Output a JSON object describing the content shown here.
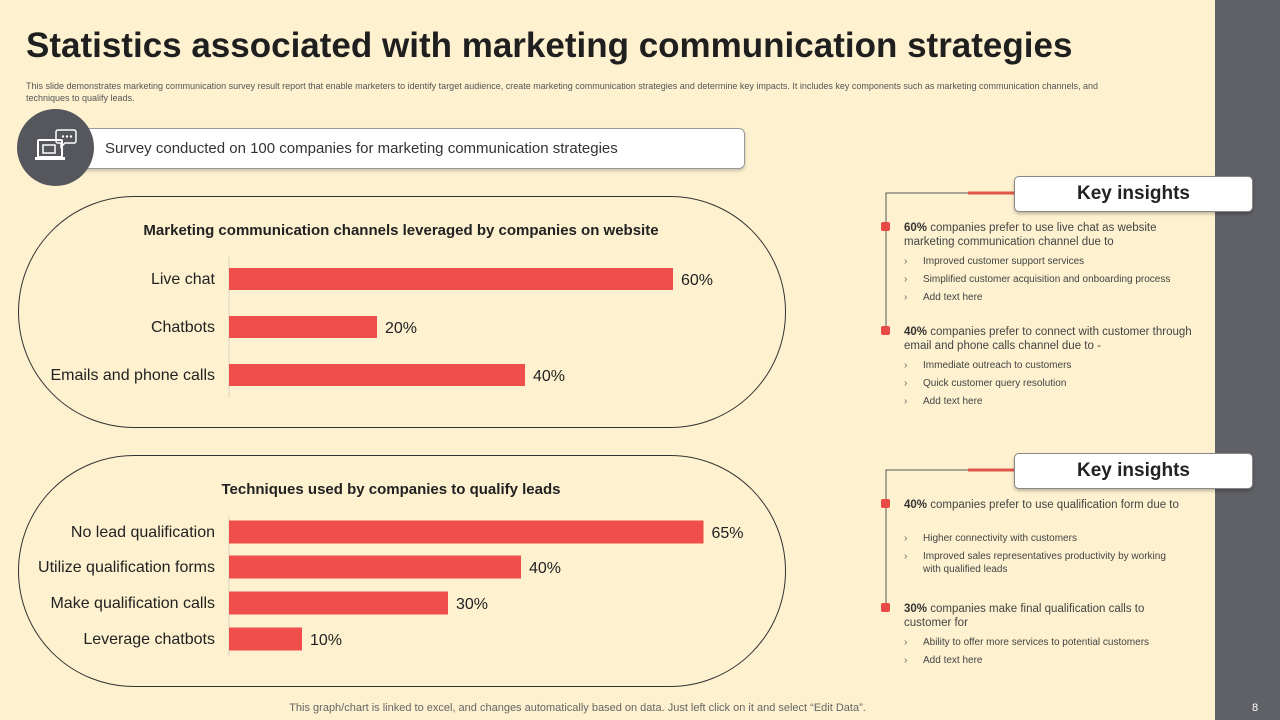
{
  "title": "Statistics associated with marketing communication strategies",
  "subtitle": "This slide demonstrates marketing communication survey result report that enable marketers to identify target audience, create marketing communication strategies and determine key impacts. It includes key components such as marketing communication channels, and techniques to qualify leads.",
  "survey_text": "Survey conducted on 100 companies for marketing communication strategies",
  "page_number": "8",
  "footer": "This graph/chart is linked to excel,  and changes automatically based on data. Just left click on it and select “Edit Data”.",
  "colors": {
    "bar": "#ef4e4b",
    "accent_line": "#e1574a",
    "marker": "#e94a45",
    "background": "#fdf1cf",
    "sidebar": "#5f6166"
  },
  "chart_data": [
    {
      "type": "bar",
      "orientation": "horizontal",
      "title": "Marketing communication channels leveraged by companies on website",
      "categories": [
        "Live chat",
        "Chatbots",
        "Emails and phone calls"
      ],
      "values": [
        60,
        20,
        40
      ],
      "value_labels": [
        "60%",
        "20%",
        "40%"
      ],
      "unit": "%"
    },
    {
      "type": "bar",
      "orientation": "horizontal",
      "title": "Techniques used by companies to qualify leads",
      "categories": [
        "No lead qualification",
        "Utilize qualification forms",
        "Make qualification calls",
        "Leverage chatbots"
      ],
      "values": [
        65,
        40,
        30,
        10
      ],
      "value_labels": [
        "65%",
        "40%",
        "30%",
        "10%"
      ],
      "unit": "%"
    }
  ],
  "insights": [
    {
      "header": "Key insights",
      "points": [
        {
          "percent": "60%",
          "text": "companies prefer to use live chat as website marketing communication channel due to",
          "bullets": [
            "Improved customer support services",
            "Simplified customer acquisition and onboarding process",
            "Add text here"
          ]
        },
        {
          "percent": "40%",
          "text": "companies prefer to connect with customer through email and phone calls channel due to -",
          "bullets": [
            "Immediate  outreach to customers",
            "Quick customer query resolution",
            "Add text here"
          ]
        }
      ]
    },
    {
      "header": "Key insights",
      "points": [
        {
          "percent": "40%",
          "text": "companies prefer to use qualification form due to",
          "bullets": [
            "Higher connectivity with customers",
            "Improved sales representatives productivity by working with qualified leads"
          ]
        },
        {
          "percent": "30%",
          "text": "companies make final qualification calls to customer for",
          "bullets": [
            "Ability to offer more services to potential customers",
            "Add text here"
          ]
        }
      ]
    }
  ]
}
